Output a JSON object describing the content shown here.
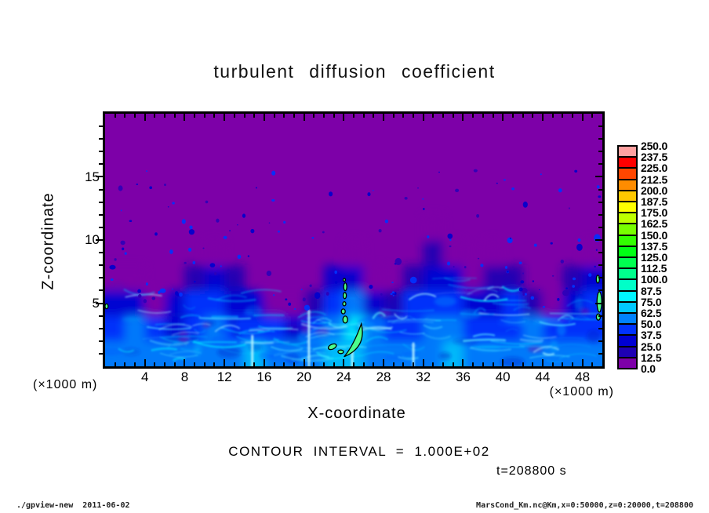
{
  "header": {
    "title": "turbulent diffusion coefficient"
  },
  "axes": {
    "x": {
      "label": "X-coordinate",
      "unit_label": "(×1000 m)",
      "range": [
        0,
        50
      ],
      "major_ticks": [
        4,
        8,
        12,
        16,
        20,
        24,
        28,
        32,
        36,
        40,
        44,
        48
      ],
      "minor_tick_step": 1
    },
    "z": {
      "label": "Z-coordinate",
      "unit_label": "(×1000 m)",
      "range": [
        0,
        20
      ],
      "major_ticks": [
        5,
        10,
        15
      ],
      "minor_tick_step": 1
    }
  },
  "annotations": {
    "contour_interval": "CONTOUR INTERVAL = 1.000E+02",
    "time": "t=208800 s"
  },
  "footer": {
    "left": "./gpview-new  2011-06-02",
    "right": "MarsCond_Km.nc@Km,x=0:50000,z=0:20000,t=208800"
  },
  "colorbar": {
    "labels_top_to_bottom": [
      "250.0",
      "237.5",
      "225.0",
      "212.5",
      "200.0",
      "187.5",
      "175.0",
      "162.5",
      "150.0",
      "137.5",
      "125.0",
      "112.5",
      "100.0",
      "87.5",
      "75.0",
      "62.5",
      "50.0",
      "37.5",
      "25.0",
      "12.5",
      "0.0"
    ],
    "colors_bottom_to_top": [
      "#7D00A8",
      "#1E00B4",
      "#0000D2",
      "#0032FF",
      "#0082FF",
      "#00C8FF",
      "#00F5FF",
      "#00FFC8",
      "#00FF8C",
      "#00FF50",
      "#00FF14",
      "#32FF00",
      "#78FF00",
      "#BEFF00",
      "#FFFF00",
      "#FFC800",
      "#FF8C00",
      "#FF4600",
      "#FF0000",
      "#FFA0A0"
    ]
  },
  "chart_data": {
    "type": "heatmap",
    "subtype": "filled-contour shading of a 2D turbulence field",
    "title": "turbulent diffusion coefficient",
    "xlabel": "X-coordinate (×1000 m)",
    "ylabel": "Z-coordinate (×1000 m)",
    "x_range": [
      0,
      50
    ],
    "z_range": [
      0,
      20
    ],
    "grid": "off",
    "legend_position": "colorbar right",
    "contour_interval": 100.0,
    "time_seconds": 208800,
    "colormap_levels": [
      0,
      12.5,
      25,
      37.5,
      50,
      62.5,
      75,
      87.5,
      100,
      112.5,
      125,
      137.5,
      150,
      162.5,
      175,
      187.5,
      200,
      212.5,
      225,
      237.5,
      250
    ],
    "background_value_color": "#7D00A8",
    "approx_field_grid": {
      "cell_km": 2,
      "order": "rows bottom-to-top (z=0..20), 25 columns left-to-right (x=0..50), values are approximate Km read from the shading",
      "values": [
        [
          55,
          62,
          50,
          58,
          60,
          52,
          55,
          63,
          58,
          50,
          60,
          68,
          70,
          60,
          55,
          50,
          58,
          66,
          60,
          52,
          58,
          62,
          55,
          50,
          60
        ],
        [
          45,
          50,
          38,
          35,
          48,
          50,
          42,
          48,
          40,
          35,
          42,
          55,
          80,
          52,
          44,
          46,
          52,
          50,
          44,
          38,
          46,
          50,
          40,
          42,
          48
        ],
        [
          36,
          30,
          12,
          28,
          42,
          46,
          36,
          26,
          12,
          6,
          16,
          46,
          52,
          30,
          24,
          40,
          46,
          42,
          32,
          36,
          42,
          16,
          10,
          30,
          40
        ],
        [
          12,
          6,
          0,
          0,
          22,
          32,
          16,
          0,
          0,
          0,
          0,
          26,
          30,
          6,
          0,
          22,
          34,
          26,
          12,
          22,
          16,
          0,
          0,
          16,
          26
        ],
        [
          0,
          0,
          0,
          0,
          0,
          6,
          0,
          0,
          0,
          0,
          0,
          0,
          10,
          0,
          0,
          0,
          16,
          10,
          0,
          12,
          0,
          0,
          0,
          0,
          10
        ],
        [
          0,
          0,
          0,
          0,
          0,
          0,
          0,
          0,
          0,
          0,
          0,
          0,
          0,
          0,
          0,
          0,
          6,
          0,
          0,
          0,
          0,
          0,
          0,
          0,
          0
        ],
        [
          0,
          0,
          0,
          0,
          0,
          0,
          0,
          0,
          0,
          0,
          0,
          0,
          0,
          0,
          0,
          0,
          0,
          0,
          0,
          0,
          0,
          0,
          0,
          0,
          0
        ],
        [
          0,
          0,
          0,
          0,
          0,
          0,
          0,
          0,
          0,
          0,
          0,
          0,
          0,
          0,
          0,
          0,
          0,
          0,
          0,
          0,
          0,
          0,
          0,
          0,
          0
        ],
        [
          0,
          0,
          0,
          0,
          0,
          0,
          0,
          0,
          0,
          0,
          0,
          0,
          0,
          0,
          0,
          0,
          0,
          0,
          0,
          0,
          0,
          0,
          0,
          0,
          0
        ],
        [
          0,
          0,
          0,
          0,
          0,
          0,
          0,
          0,
          0,
          0,
          0,
          0,
          0,
          0,
          0,
          0,
          0,
          0,
          0,
          0,
          0,
          0,
          0,
          0,
          0
        ]
      ]
    },
    "mixed_layer_top_profile_x_z": [
      [
        0,
        6.2
      ],
      [
        1.5,
        6.8
      ],
      [
        3,
        5.4
      ],
      [
        5,
        4.2
      ],
      [
        7,
        5.0
      ],
      [
        9,
        6.2
      ],
      [
        11.5,
        7.0
      ],
      [
        13,
        6.6
      ],
      [
        15,
        5.6
      ],
      [
        17,
        4.6
      ],
      [
        19,
        4.2
      ],
      [
        21,
        4.4
      ],
      [
        22.5,
        5.5
      ],
      [
        23.8,
        6.6
      ],
      [
        24.8,
        5.4
      ],
      [
        26,
        4.4
      ],
      [
        28,
        4.8
      ],
      [
        30,
        5.8
      ],
      [
        32,
        7.0
      ],
      [
        34,
        8.0
      ],
      [
        35,
        7.6
      ],
      [
        36.5,
        6.6
      ],
      [
        38,
        6.8
      ],
      [
        39.5,
        6.0
      ],
      [
        40.5,
        7.2
      ],
      [
        42,
        5.4
      ],
      [
        43.5,
        4.2
      ],
      [
        45,
        4.6
      ],
      [
        46.5,
        5.6
      ],
      [
        48,
        6.6
      ],
      [
        49.5,
        7.2
      ],
      [
        50,
        7.0
      ]
    ],
    "contour100_features": [
      {
        "shape": "crescent",
        "x": 24.9,
        "z": 2.0,
        "fill": "#4CFF8C"
      },
      {
        "shape": "ellipse",
        "x": 24.15,
        "z": 3.7,
        "rx": 0.24,
        "ry": 0.28
      },
      {
        "shape": "ellipse",
        "x": 23.95,
        "z": 4.35,
        "rx": 0.2,
        "ry": 0.19
      },
      {
        "shape": "ellipse",
        "x": 24.05,
        "z": 4.95,
        "rx": 0.16,
        "ry": 0.16
      },
      {
        "shape": "ellipse",
        "x": 24.1,
        "z": 5.6,
        "rx": 0.16,
        "ry": 0.25
      },
      {
        "shape": "ellipse",
        "x": 24.15,
        "z": 6.3,
        "rx": 0.16,
        "ry": 0.31
      },
      {
        "shape": "ellipse",
        "x": 24.05,
        "z": 6.85,
        "rx": 0.12,
        "ry": 0.12
      },
      {
        "shape": "ellipse",
        "x": 22.85,
        "z": 1.55,
        "rx": 0.43,
        "ry": 0.19,
        "rot": -25
      },
      {
        "shape": "ellipse",
        "x": 23.7,
        "z": 1.15,
        "rx": 0.28,
        "ry": 0.14
      },
      {
        "shape": "ellipse",
        "x": 49.7,
        "z": 5.1,
        "rx": 0.24,
        "ry": 0.81
      },
      {
        "shape": "ellipse",
        "x": 49.6,
        "z": 3.9,
        "rx": 0.2,
        "ry": 0.25
      },
      {
        "shape": "ellipse",
        "x": 49.55,
        "z": 6.9,
        "rx": 0.16,
        "ry": 0.31
      },
      {
        "shape": "ellipse",
        "x": 0.15,
        "z": 4.75,
        "rx": 0.16,
        "ry": 0.19
      }
    ]
  }
}
